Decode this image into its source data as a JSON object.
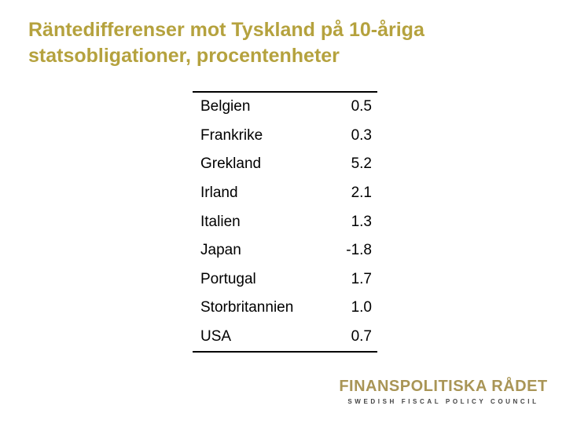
{
  "title": {
    "line1": "Räntedifferenser mot Tyskland på 10-åriga",
    "line2": "statsobligationer, procentenheter"
  },
  "table": {
    "rows": [
      {
        "country": "Belgien",
        "value": "0.5"
      },
      {
        "country": "Frankrike",
        "value": "0.3"
      },
      {
        "country": "Grekland",
        "value": "5.2"
      },
      {
        "country": "Irland",
        "value": "2.1"
      },
      {
        "country": "Italien",
        "value": "1.3"
      },
      {
        "country": "Japan",
        "value": "-1.8"
      },
      {
        "country": "Portugal",
        "value": "1.7"
      },
      {
        "country": "Storbritannien",
        "value": "1.0"
      },
      {
        "country": "USA",
        "value": "0.7"
      }
    ]
  },
  "logo": {
    "name": "FINANSPOLITISKA RÅDET",
    "subtitle": "SWEDISH FISCAL POLICY COUNCIL"
  },
  "colors": {
    "title": "#b5a23e",
    "logo": "#a99556"
  }
}
